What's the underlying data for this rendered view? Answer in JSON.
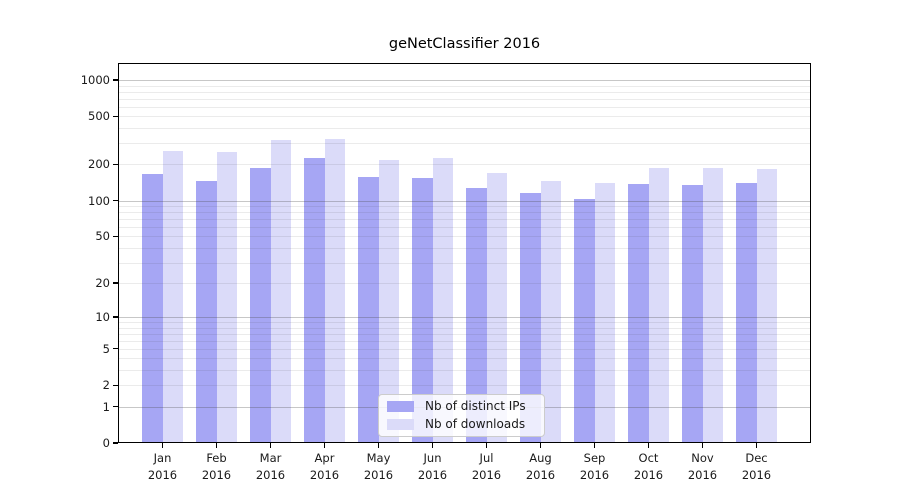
{
  "chart_data": {
    "type": "bar",
    "title": "geNetClassifier 2016",
    "categories": [
      "Jan 2016",
      "Feb 2016",
      "Mar 2016",
      "Apr 2016",
      "May 2016",
      "Jun 2016",
      "Jul 2016",
      "Aug 2016",
      "Sep 2016",
      "Oct 2016",
      "Nov 2016",
      "Dec 2016"
    ],
    "series": [
      {
        "name": "Nb of distinct IPs",
        "color": "#a6a6f4",
        "values": [
          167,
          146,
          186,
          226,
          158,
          153,
          128,
          116,
          103,
          138,
          136,
          139
        ]
      },
      {
        "name": "Nb of downloads",
        "color": "#dbdbf9",
        "values": [
          260,
          252,
          319,
          323,
          216,
          225,
          171,
          145,
          140,
          185,
          187,
          184
        ]
      }
    ],
    "yscale": "log1p",
    "yticks": [
      0,
      1,
      2,
      5,
      10,
      20,
      50,
      100,
      200,
      500,
      1000
    ],
    "ylim": [
      0,
      1382
    ],
    "xlabel": "",
    "ylabel": "",
    "grid": "horizontal, dark lines at decades (1,10,100,1000), faint minor lines between",
    "legend_position": "lower-center",
    "colors": {
      "bar_distinct_ips": "#a6a6f4",
      "bar_downloads": "#dbdbf9",
      "grid_major": "#c6c6c6",
      "grid_minor": "#ebebeb",
      "axis": "#000000",
      "text": "#1a1a1a",
      "legend_border": "#cccccc",
      "background": "#ffffff"
    }
  }
}
